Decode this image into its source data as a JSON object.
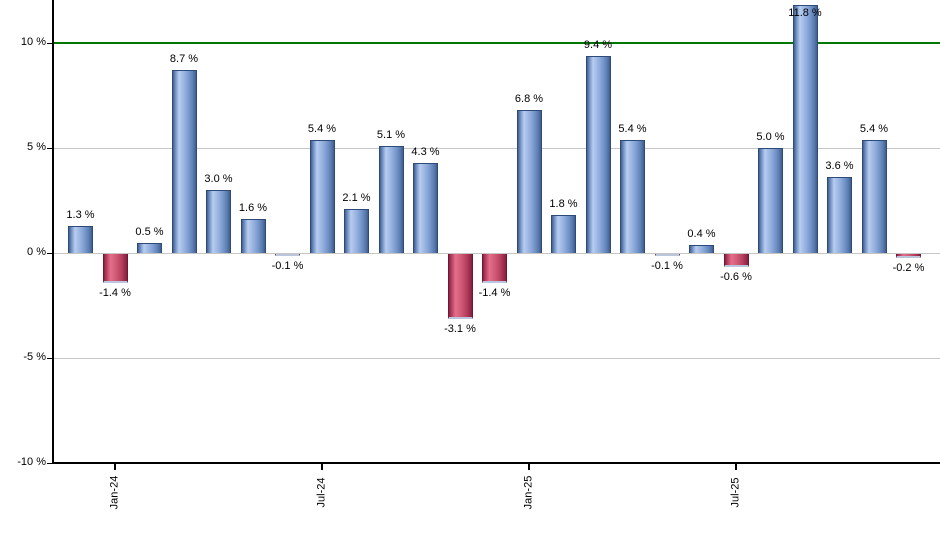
{
  "chart_data": {
    "type": "bar",
    "title": "",
    "xlabel": "",
    "ylabel": "",
    "unit": "%",
    "values": [
      1.3,
      -1.4,
      0.5,
      8.7,
      3.0,
      1.6,
      -0.1,
      5.4,
      2.1,
      5.1,
      4.3,
      -3.1,
      -1.4,
      6.8,
      1.8,
      9.4,
      5.4,
      -0.1,
      0.4,
      -0.6,
      5.0,
      11.8,
      3.6,
      5.4,
      -0.2
    ],
    "value_labels": [
      "1.3 %",
      "-1.4 %",
      "0.5 %",
      "8.7 %",
      "3.0 %",
      "1.6 %",
      "-0.1 %",
      "5.4 %",
      "2.1 %",
      "5.1 %",
      "4.3 %",
      "-3.1 %",
      "-1.4 %",
      "6.8 %",
      "1.8 %",
      "9.4 %",
      "5.4 %",
      "-0.1 %",
      "0.4 %",
      "-0.6 %",
      "5.0 %",
      "11.8 %",
      "3.6 %",
      "5.4 %",
      "-0.2 %"
    ],
    "x_ticks": [
      {
        "label": "Jan-24",
        "bar_index": 1
      },
      {
        "label": "Jul-24",
        "bar_index": 7
      },
      {
        "label": "Jan-25",
        "bar_index": 13
      },
      {
        "label": "Jul-25",
        "bar_index": 19
      }
    ],
    "y_ticks": [
      {
        "label": "10 %",
        "value": 10
      },
      {
        "label": "5 %",
        "value": 5
      },
      {
        "label": "0 %",
        "value": 0
      },
      {
        "label": "-5 %",
        "value": -5
      },
      {
        "label": "-10 %",
        "value": -10
      }
    ],
    "ylim": [
      -10,
      12.1
    ],
    "grid": true,
    "legend": "none",
    "threshold_line": {
      "value": 10,
      "color": "#007700"
    },
    "colors": {
      "positive_bar": "#7e9fd4",
      "negative_bar": "#c94e6e",
      "grid_line": "#c6c6c6",
      "axis_line": "#000000",
      "label_text": "#000000"
    }
  }
}
